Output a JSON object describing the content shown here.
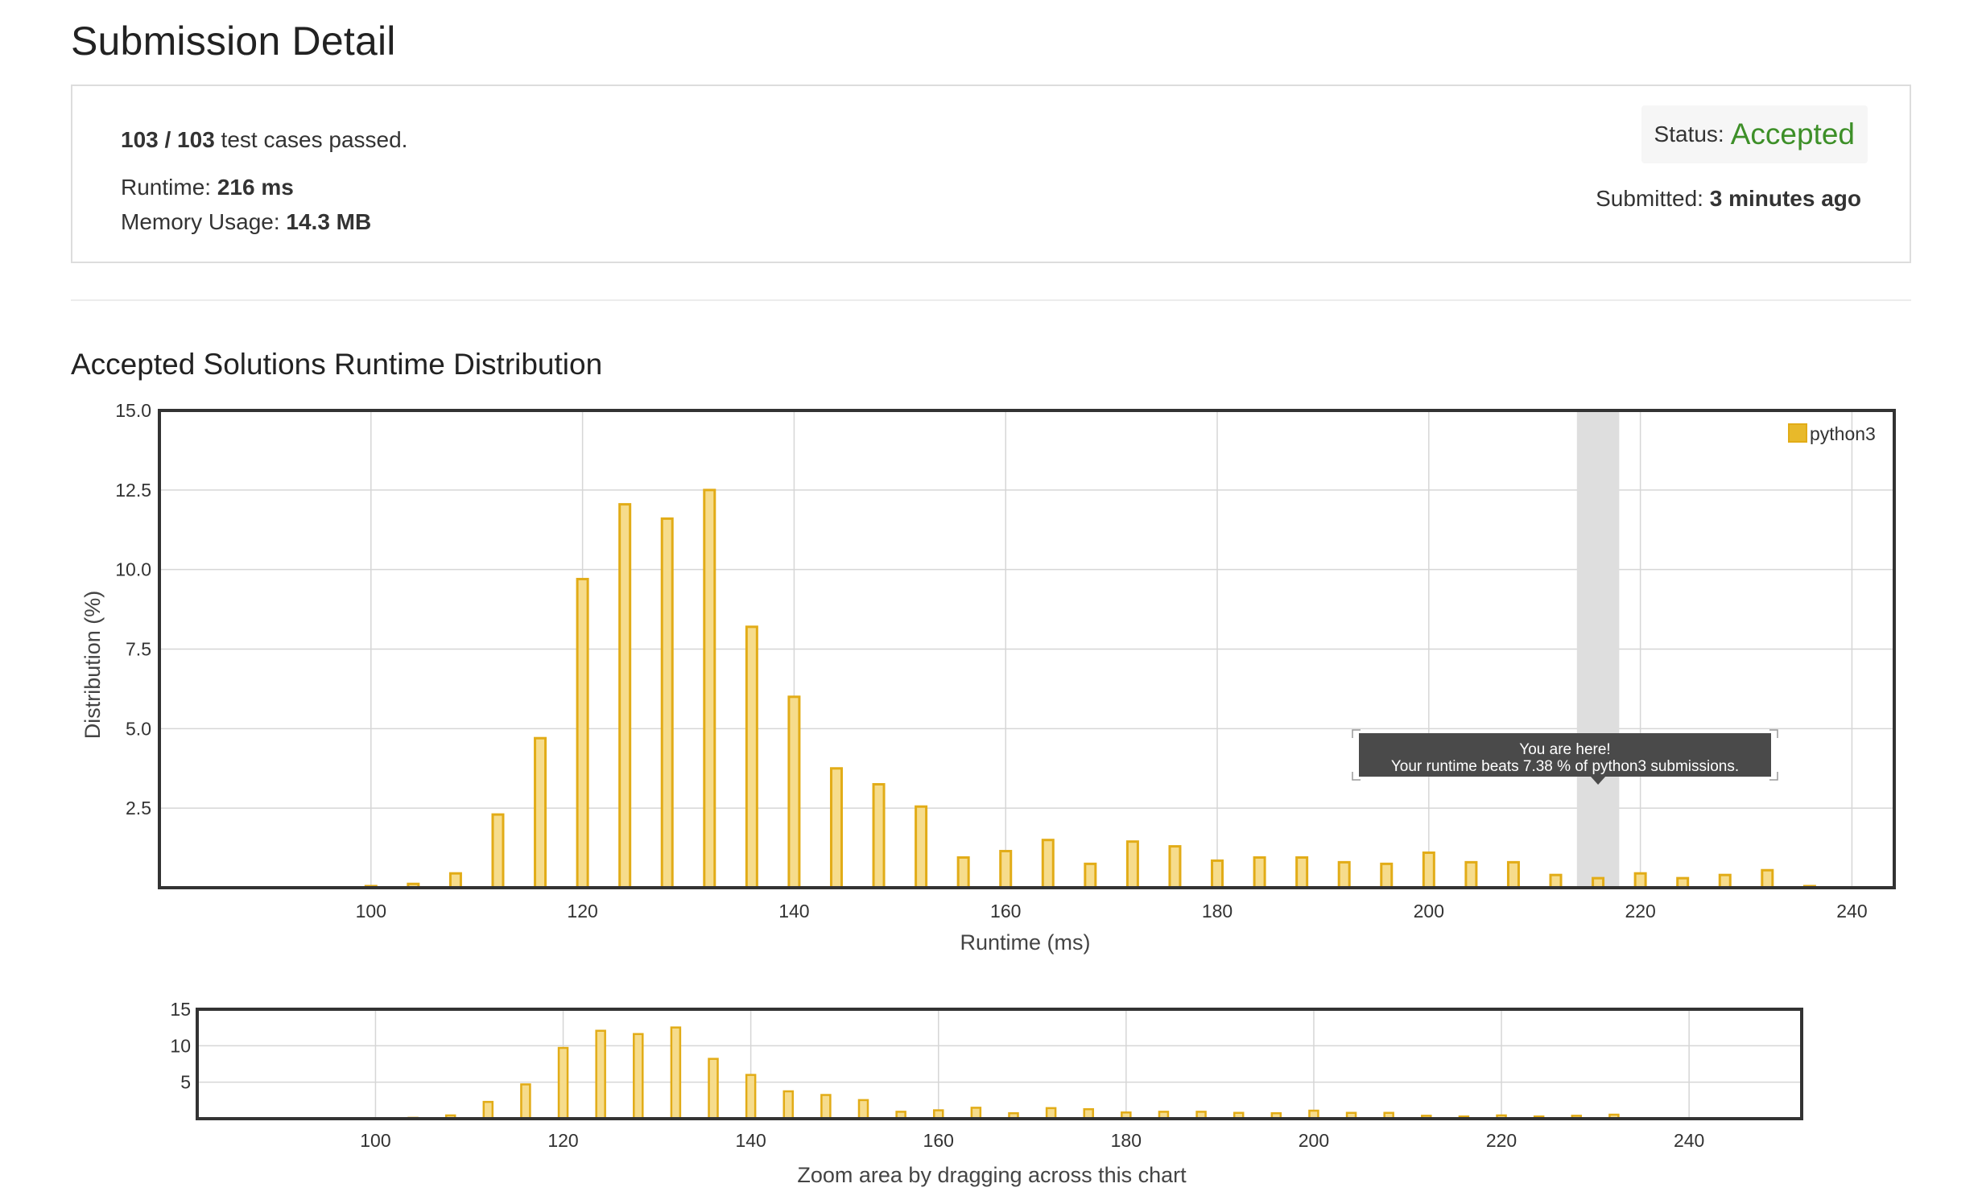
{
  "page": {
    "title": "Submission Detail"
  },
  "summary": {
    "cases_passed": "103 / 103",
    "cases_suffix": " test cases passed.",
    "runtime_label": "Runtime: ",
    "runtime_value": "216 ms",
    "memory_label": "Memory Usage: ",
    "memory_value": "14.3 MB",
    "status_label": "Status:",
    "status_value": "Accepted",
    "submitted_label": "Submitted: ",
    "submitted_value": "3 minutes ago"
  },
  "colors": {
    "accepted": "#3d8f28",
    "bar_fill": "#f6dc8c",
    "bar_stroke": "#e2ac17",
    "highlight_band": "#dedede",
    "tooltip_bg": "#4a4a4a"
  },
  "section": {
    "title": "Accepted Solutions Runtime Distribution"
  },
  "tooltip": {
    "line1": "You are here!",
    "line2": "Your runtime beats 7.38 % of python3 submissions."
  },
  "zoom_hint": "Zoom area by dragging across this chart",
  "chart_data": [
    {
      "type": "bar",
      "role": "main",
      "xlabel": "Runtime (ms)",
      "ylabel": "Distribution (%)",
      "xlim": [
        80,
        244
      ],
      "ylim": [
        0,
        15
      ],
      "xticks": [
        "100",
        "120",
        "140",
        "160",
        "180",
        "200",
        "220",
        "240"
      ],
      "yticks": [
        "2.5",
        "5.0",
        "7.5",
        "10.0",
        "12.5",
        "15.0"
      ],
      "grid": true,
      "legend_position": "top-right",
      "highlight_x": 216,
      "series": [
        {
          "name": "python3",
          "x": [
            100,
            104,
            108,
            112,
            116,
            120,
            124,
            128,
            132,
            136,
            140,
            144,
            148,
            152,
            156,
            160,
            164,
            168,
            172,
            176,
            180,
            184,
            188,
            192,
            196,
            200,
            204,
            208,
            212,
            216,
            220,
            224,
            228,
            232,
            236
          ],
          "values": [
            0.05,
            0.12,
            0.45,
            2.3,
            4.7,
            9.7,
            12.05,
            11.6,
            12.5,
            8.2,
            6.0,
            3.75,
            3.25,
            2.55,
            0.95,
            1.15,
            1.5,
            0.75,
            1.45,
            1.3,
            0.85,
            0.95,
            0.95,
            0.8,
            0.75,
            1.1,
            0.8,
            0.8,
            0.4,
            0.3,
            0.45,
            0.3,
            0.4,
            0.55,
            0.05
          ]
        }
      ]
    },
    {
      "type": "bar",
      "role": "navigator",
      "xlim": [
        81,
        252
      ],
      "ylim": [
        0,
        15
      ],
      "xticks": [
        "100",
        "120",
        "140",
        "160",
        "180",
        "200",
        "220",
        "240"
      ],
      "yticks": [
        "5",
        "10",
        "15"
      ],
      "grid": true
    }
  ]
}
